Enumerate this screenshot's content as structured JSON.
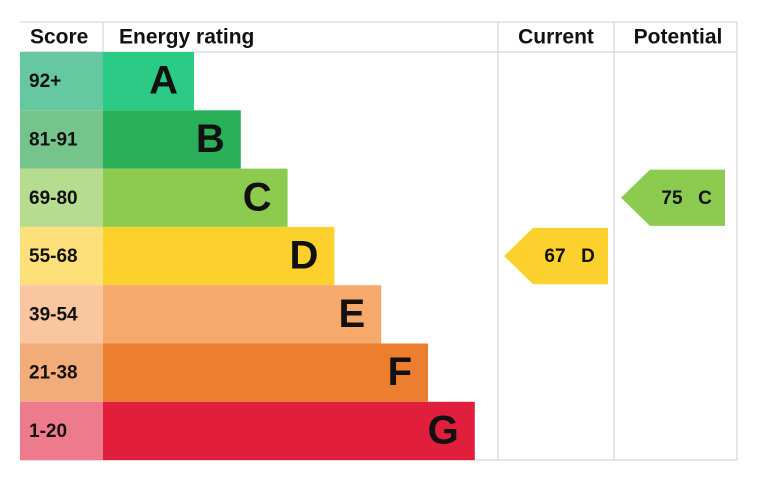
{
  "header": {
    "score": "Score",
    "rating": "Energy rating",
    "current": "Current",
    "potential": "Potential"
  },
  "bands": [
    {
      "score": "92+",
      "letter": "A",
      "color": "#2bcb85",
      "score_color": "#66c8a1"
    },
    {
      "score": "81-91",
      "letter": "B",
      "color": "#2bb05a",
      "score_color": "#74c48c"
    },
    {
      "score": "69-80",
      "letter": "C",
      "color": "#8ccb4f",
      "score_color": "#b6dc8f"
    },
    {
      "score": "55-68",
      "letter": "D",
      "color": "#fcd12e",
      "score_color": "#fde07a"
    },
    {
      "score": "39-54",
      "letter": "E",
      "color": "#f7a96b",
      "score_color": "#f9c6a0"
    },
    {
      "score": "21-38",
      "letter": "F",
      "color": "#ec7f2f",
      "score_color": "#f2ac7a"
    },
    {
      "score": "1-20",
      "letter": "G",
      "color": "#e11e3c",
      "score_color": "#ee7b8c"
    }
  ],
  "current": {
    "value": 67,
    "letter": "D",
    "color": "#fcd12e"
  },
  "potential": {
    "value": 75,
    "letter": "C",
    "color": "#8ccb4f"
  }
}
